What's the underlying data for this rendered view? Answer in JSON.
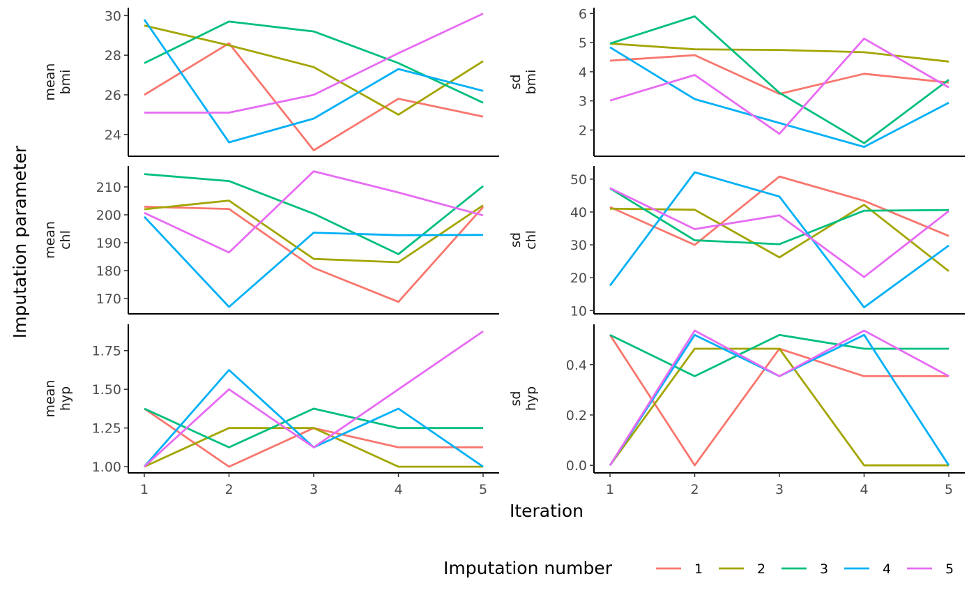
{
  "chart_data": {
    "type": "line",
    "x": [
      1,
      2,
      3,
      4,
      5
    ],
    "xlabel": "Iteration",
    "ylabel": "Imputation parameter",
    "legend": {
      "title": "Imputation number",
      "position": "bottom-right",
      "entries": [
        "1",
        "2",
        "3",
        "4",
        "5"
      ]
    },
    "colors": [
      "#F8766D",
      "#A3A500",
      "#00BF7D",
      "#00B0F6",
      "#E76BF3"
    ],
    "grid": false,
    "panels": [
      {
        "id": "mean-bmi",
        "stat": "mean",
        "variable": "bmi",
        "yticks": [
          "24",
          "26",
          "28",
          "30"
        ],
        "ylim": [
          22.9,
          30.4
        ],
        "series": [
          {
            "name": "1",
            "values": [
              26.0,
              28.6,
              23.2,
              25.8,
              24.9
            ]
          },
          {
            "name": "2",
            "values": [
              29.5,
              28.5,
              27.4,
              25.0,
              27.7
            ]
          },
          {
            "name": "3",
            "values": [
              27.6,
              29.7,
              29.2,
              27.6,
              25.6
            ]
          },
          {
            "name": "4",
            "values": [
              29.8,
              23.6,
              24.8,
              27.3,
              26.2
            ]
          },
          {
            "name": "5",
            "values": [
              25.1,
              25.1,
              26.0,
              28.1,
              30.1
            ]
          }
        ]
      },
      {
        "id": "sd-bmi",
        "stat": "sd",
        "variable": "bmi",
        "yticks": [
          "2",
          "3",
          "4",
          "5",
          "6"
        ],
        "ylim": [
          1.1,
          6.2
        ],
        "series": [
          {
            "name": "1",
            "values": [
              4.38,
              4.57,
              3.24,
              3.93,
              3.63
            ]
          },
          {
            "name": "2",
            "values": [
              4.97,
              4.77,
              4.75,
              4.67,
              4.35
            ]
          },
          {
            "name": "3",
            "values": [
              4.97,
              5.9,
              3.28,
              1.55,
              3.73
            ]
          },
          {
            "name": "4",
            "values": [
              4.84,
              3.06,
              2.24,
              1.42,
              2.94
            ]
          },
          {
            "name": "5",
            "values": [
              3.01,
              3.89,
              1.87,
              5.14,
              3.46
            ]
          }
        ]
      },
      {
        "id": "mean-chl",
        "stat": "mean",
        "variable": "chl",
        "yticks": [
          "170",
          "180",
          "190",
          "200",
          "210"
        ],
        "ylim": [
          164.5,
          217.5
        ],
        "series": [
          {
            "name": "1",
            "values": [
              202.9,
              202.1,
              181.0,
              168.8,
              202.8
            ]
          },
          {
            "name": "2",
            "values": [
              202.0,
              205.1,
              184.2,
              183.0,
              203.4
            ]
          },
          {
            "name": "3",
            "values": [
              214.6,
              212.1,
              200.4,
              185.9,
              210.3
            ]
          },
          {
            "name": "4",
            "values": [
              199.3,
              167.0,
              193.6,
              192.7,
              192.8
            ]
          },
          {
            "name": "5",
            "values": [
              200.7,
              186.5,
              215.6,
              208.0,
              199.8
            ]
          }
        ]
      },
      {
        "id": "sd-chl",
        "stat": "sd",
        "variable": "chl",
        "yticks": [
          "10",
          "20",
          "30",
          "40",
          "50"
        ],
        "ylim": [
          9,
          54
        ],
        "series": [
          {
            "name": "1",
            "values": [
              41.5,
              30.0,
              50.8,
              43.4,
              32.7
            ]
          },
          {
            "name": "2",
            "values": [
              41.0,
              40.7,
              26.2,
              42.2,
              22.0
            ]
          },
          {
            "name": "3",
            "values": [
              47.2,
              31.4,
              30.2,
              40.4,
              40.6
            ]
          },
          {
            "name": "4",
            "values": [
              17.6,
              52.1,
              44.7,
              11.0,
              29.8
            ]
          },
          {
            "name": "5",
            "values": [
              47.3,
              34.8,
              39.0,
              20.2,
              40.3
            ]
          }
        ]
      },
      {
        "id": "mean-hyp",
        "stat": "mean",
        "variable": "hyp",
        "yticks": [
          "1.00",
          "1.25",
          "1.50",
          "1.75"
        ],
        "ylim": [
          0.96,
          1.92
        ],
        "series": [
          {
            "name": "1",
            "values": [
              1.375,
              1.0,
              1.25,
              1.125,
              1.125
            ]
          },
          {
            "name": "2",
            "values": [
              1.0,
              1.25,
              1.25,
              1.0,
              1.0
            ]
          },
          {
            "name": "3",
            "values": [
              1.375,
              1.125,
              1.375,
              1.25,
              1.25
            ]
          },
          {
            "name": "4",
            "values": [
              1.0,
              1.625,
              1.125,
              1.375,
              1.0
            ]
          },
          {
            "name": "5",
            "values": [
              1.0,
              1.5,
              1.125,
              1.5,
              1.875
            ]
          }
        ]
      },
      {
        "id": "sd-hyp",
        "stat": "sd",
        "variable": "hyp",
        "yticks": [
          "0.0",
          "0.2",
          "0.4"
        ],
        "ylim": [
          -0.03,
          0.56
        ],
        "series": [
          {
            "name": "1",
            "values": [
              0.518,
              0.0,
              0.463,
              0.354,
              0.354
            ]
          },
          {
            "name": "2",
            "values": [
              0.0,
              0.463,
              0.463,
              0.0,
              0.0
            ]
          },
          {
            "name": "3",
            "values": [
              0.518,
              0.354,
              0.518,
              0.463,
              0.463
            ]
          },
          {
            "name": "4",
            "values": [
              0.0,
              0.518,
              0.354,
              0.518,
              0.0
            ]
          },
          {
            "name": "5",
            "values": [
              0.0,
              0.535,
              0.354,
              0.535,
              0.354
            ]
          }
        ]
      }
    ]
  }
}
